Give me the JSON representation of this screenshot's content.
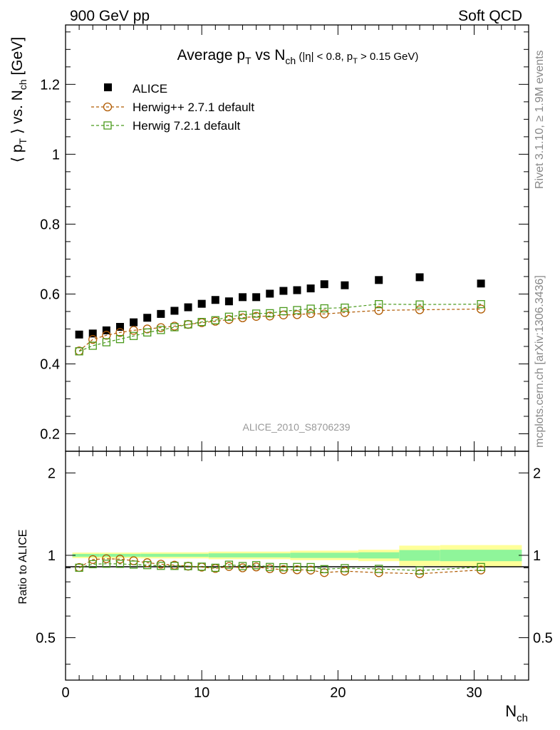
{
  "header": {
    "left": "900 GeV pp",
    "right": "Soft QCD"
  },
  "side_labels": {
    "rivet": "Rivet 3.1.10, ≥ 1.9M events",
    "mcplots": "mcplots.cern.ch [arXiv:1306.3436]"
  },
  "chart_data": {
    "type": "scatter",
    "title": {
      "base": "Average p",
      "sub1": "T",
      "mid": " vs N",
      "sub2": "ch",
      "cuts_a": " (|η| < 0.8, p",
      "cuts_sub": "T",
      "cuts_b": " > 0.15 GeV)"
    },
    "analysis_tag": "ALICE_2010_S8706239",
    "xlabel": {
      "base": "N",
      "sub": "ch"
    },
    "ylabel": {
      "a": "⟨ p",
      "sub1": "T",
      "b": " ⟩ vs. N",
      "sub2": "ch",
      "c": " [GeV]"
    },
    "ratio_ylabel": "Ratio to ALICE",
    "xlim": [
      0,
      34
    ],
    "ylim": [
      0.15,
      1.37
    ],
    "ratio_ylim": [
      0.35,
      2.4
    ],
    "ratio_scale": "log",
    "x_ticks": [
      "0",
      "10",
      "20",
      "30"
    ],
    "y_ticks": [
      "0.2",
      "0.4",
      "0.6",
      "0.8",
      "1",
      "1.2"
    ],
    "ratio_ticks": [
      "0.5",
      "1",
      "2"
    ],
    "x": [
      1,
      2,
      3,
      4,
      5,
      6,
      7,
      8,
      9,
      10,
      11,
      12,
      13,
      14,
      15,
      16,
      17,
      18,
      19,
      20.5,
      23,
      26,
      30.5
    ],
    "series": [
      {
        "name": "ALICE",
        "color": "#000000",
        "marker": "filled-square",
        "values": [
          0.484,
          0.487,
          0.496,
          0.506,
          0.519,
          0.532,
          0.543,
          0.552,
          0.562,
          0.572,
          0.583,
          0.579,
          0.591,
          0.591,
          0.601,
          0.609,
          0.611,
          0.616,
          0.628,
          0.625,
          0.64,
          0.648,
          0.63
        ]
      },
      {
        "name": "Herwig++ 2.7.1 default",
        "color": "#b05a00",
        "marker": "open-circle",
        "values": [
          0.437,
          0.47,
          0.482,
          0.49,
          0.496,
          0.5,
          0.504,
          0.508,
          0.513,
          0.518,
          0.522,
          0.527,
          0.532,
          0.536,
          0.537,
          0.54,
          0.541,
          0.544,
          0.543,
          0.547,
          0.553,
          0.555,
          0.557
        ]
      },
      {
        "name": "Herwig 7.2.1 default",
        "color": "#4a9a1c",
        "marker": "open-square",
        "values": [
          0.436,
          0.452,
          0.462,
          0.471,
          0.48,
          0.49,
          0.497,
          0.505,
          0.513,
          0.52,
          0.525,
          0.535,
          0.54,
          0.544,
          0.545,
          0.551,
          0.554,
          0.558,
          0.559,
          0.561,
          0.571,
          0.57,
          0.571
        ]
      }
    ],
    "ratio_band": {
      "bin_edges": [
        0.5,
        2.5,
        5.5,
        10.5,
        16.5,
        21.5,
        24.5,
        27.5,
        33.5
      ],
      "stat": [
        0.012,
        0.012,
        0.013,
        0.017,
        0.022,
        0.026,
        0.045,
        0.048
      ],
      "total": [
        0.024,
        0.024,
        0.026,
        0.032,
        0.04,
        0.048,
        0.085,
        0.09
      ],
      "stat_color": "#8ff59a",
      "total_color": "#ffff99"
    },
    "legend_position": "top-left",
    "grid": false
  }
}
